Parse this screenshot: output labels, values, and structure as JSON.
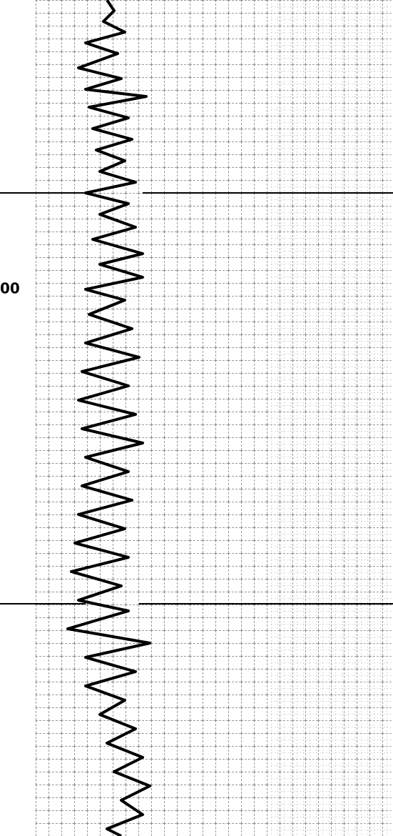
{
  "depth_label": "00"
}
